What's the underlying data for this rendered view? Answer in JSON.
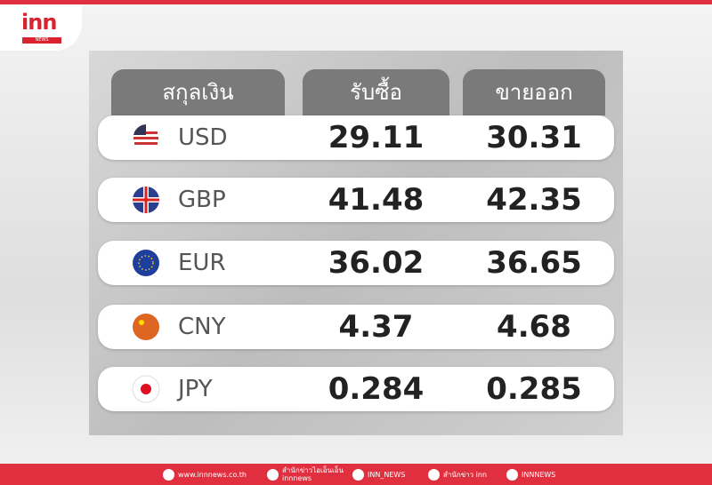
{
  "header": {
    "logo": "inn",
    "logo_sub": "NEWS"
  },
  "table": {
    "columns": [
      "สกุลเงิน",
      "รับซื้อ",
      "ขายออก"
    ],
    "rows": [
      [
        "USD",
        "29.11",
        "30.31"
      ],
      [
        "GBP",
        "41.48",
        "42.35"
      ],
      [
        "EUR",
        "36.02",
        "36.65"
      ],
      [
        "CNY",
        "4.37",
        "4.68"
      ],
      [
        "JPY",
        "0.284",
        "0.285"
      ]
    ]
  },
  "footer": {
    "items": [
      [
        "www.innnews.co.th"
      ],
      [
        "สำนักข่าวไอเอ็นเอ็น",
        "innnews"
      ],
      [
        "INN_NEWS"
      ],
      [
        "สำนักข่าว inn"
      ],
      [
        "INNNEWS"
      ]
    ]
  }
}
